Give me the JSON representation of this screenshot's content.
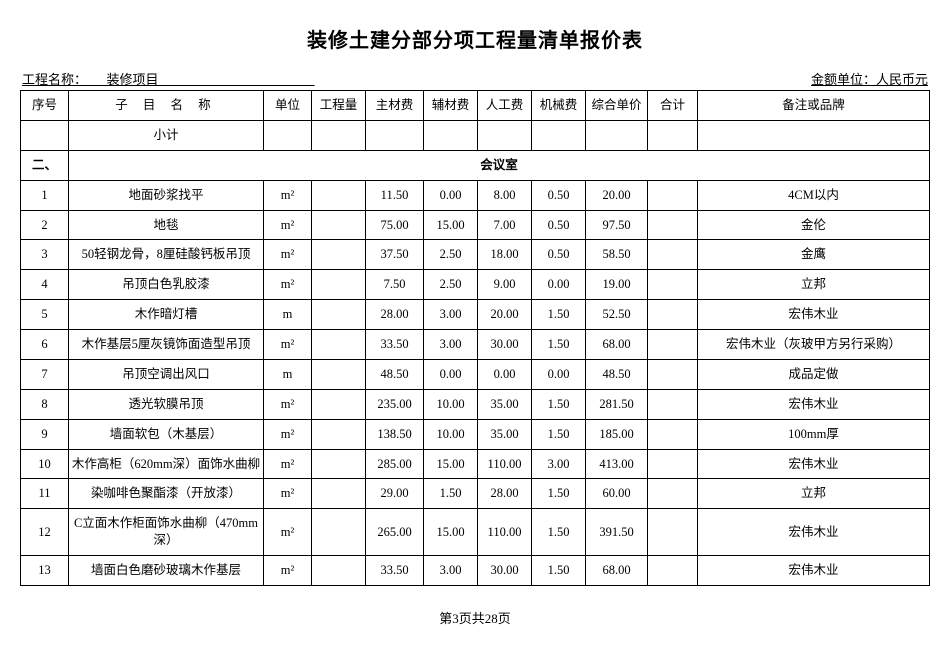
{
  "title": "装修土建分部分项工程量清单报价表",
  "meta": {
    "project_label": "工程名称：",
    "project_value": "装修项目",
    "currency_label": "金额单位：人民币元"
  },
  "columns": {
    "seq": "序号",
    "name": "子 目 名 称",
    "unit": "单位",
    "qty": "工程量",
    "main": "主材费",
    "aux": "辅材费",
    "labor": "人工费",
    "mach": "机械费",
    "price": "综合单价",
    "total": "合计",
    "note": "备注或品牌"
  },
  "subtotal_label": "小计",
  "section": {
    "seq": "二、",
    "title": "会议室"
  },
  "rows": [
    {
      "seq": "1",
      "name": "地面砂浆找平",
      "unit": "m²",
      "qty": "",
      "main": "11.50",
      "aux": "0.00",
      "labor": "8.00",
      "mach": "0.50",
      "price": "20.00",
      "total": "",
      "note": "4CM以内"
    },
    {
      "seq": "2",
      "name": "地毯",
      "unit": "m²",
      "qty": "",
      "main": "75.00",
      "aux": "15.00",
      "labor": "7.00",
      "mach": "0.50",
      "price": "97.50",
      "total": "",
      "note": "金伦"
    },
    {
      "seq": "3",
      "name": "50轻钢龙骨，8厘硅酸钙板吊顶",
      "unit": "m²",
      "qty": "",
      "main": "37.50",
      "aux": "2.50",
      "labor": "18.00",
      "mach": "0.50",
      "price": "58.50",
      "total": "",
      "note": "金鹰"
    },
    {
      "seq": "4",
      "name": "吊顶白色乳胶漆",
      "unit": "m²",
      "qty": "",
      "main": "7.50",
      "aux": "2.50",
      "labor": "9.00",
      "mach": "0.00",
      "price": "19.00",
      "total": "",
      "note": "立邦"
    },
    {
      "seq": "5",
      "name": "木作暗灯槽",
      "unit": "m",
      "qty": "",
      "main": "28.00",
      "aux": "3.00",
      "labor": "20.00",
      "mach": "1.50",
      "price": "52.50",
      "total": "",
      "note": "宏伟木业"
    },
    {
      "seq": "6",
      "name": "木作基层5厘灰镜饰面造型吊顶",
      "unit": "m²",
      "qty": "",
      "main": "33.50",
      "aux": "3.00",
      "labor": "30.00",
      "mach": "1.50",
      "price": "68.00",
      "total": "",
      "note": "宏伟木业（灰玻甲方另行采购）"
    },
    {
      "seq": "7",
      "name": "吊顶空调出风口",
      "unit": "m",
      "qty": "",
      "main": "48.50",
      "aux": "0.00",
      "labor": "0.00",
      "mach": "0.00",
      "price": "48.50",
      "total": "",
      "note": "成品定做"
    },
    {
      "seq": "8",
      "name": "透光软膜吊顶",
      "unit": "m²",
      "qty": "",
      "main": "235.00",
      "aux": "10.00",
      "labor": "35.00",
      "mach": "1.50",
      "price": "281.50",
      "total": "",
      "note": "宏伟木业"
    },
    {
      "seq": "9",
      "name": "墙面软包（木基层）",
      "unit": "m²",
      "qty": "",
      "main": "138.50",
      "aux": "10.00",
      "labor": "35.00",
      "mach": "1.50",
      "price": "185.00",
      "total": "",
      "note": "100mm厚"
    },
    {
      "seq": "10",
      "name": "木作高柜（620mm深）面饰水曲柳",
      "unit": "m²",
      "qty": "",
      "main": "285.00",
      "aux": "15.00",
      "labor": "110.00",
      "mach": "3.00",
      "price": "413.00",
      "total": "",
      "note": "宏伟木业"
    },
    {
      "seq": "11",
      "name": "染咖啡色聚酯漆（开放漆）",
      "unit": "m²",
      "qty": "",
      "main": "29.00",
      "aux": "1.50",
      "labor": "28.00",
      "mach": "1.50",
      "price": "60.00",
      "total": "",
      "note": "立邦"
    },
    {
      "seq": "12",
      "name": "C立面木作柜面饰水曲柳（470mm深）",
      "unit": "m²",
      "qty": "",
      "main": "265.00",
      "aux": "15.00",
      "labor": "110.00",
      "mach": "1.50",
      "price": "391.50",
      "total": "",
      "note": "宏伟木业"
    },
    {
      "seq": "13",
      "name": "墙面白色磨砂玻璃木作基层",
      "unit": "m²",
      "qty": "",
      "main": "33.50",
      "aux": "3.00",
      "labor": "30.00",
      "mach": "1.50",
      "price": "68.00",
      "total": "",
      "note": "宏伟木业"
    }
  ],
  "footer": "第3页共28页"
}
